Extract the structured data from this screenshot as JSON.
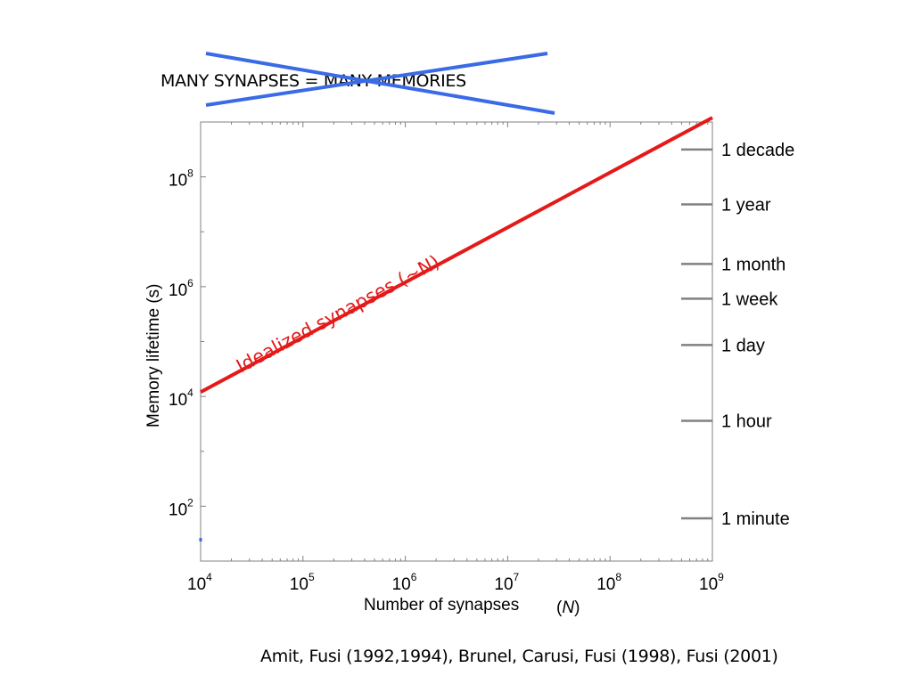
{
  "slide": {
    "title": "MANY SYNAPSES = MANY MEMORIES",
    "citation": "Amit, Fusi (1992,1994), Brunel, Carusi, Fusi (1998), Fusi (2001)"
  },
  "colors": {
    "strike": "#3a6ae6",
    "line": "#e41a1a",
    "reference_ticks": "#808080",
    "axes": "#808080"
  },
  "chart_data": {
    "type": "line",
    "xscale": "log",
    "yscale": "log",
    "xlim": [
      10000,
      1000000000
    ],
    "ylim": [
      10,
      1000000000
    ],
    "xlabel": "Number of synapses",
    "xlabel_symbol": "N",
    "ylabel": "Memory lifetime (s)",
    "x_ticks": [
      {
        "value": 10000,
        "base": "10",
        "exp": "4"
      },
      {
        "value": 100000,
        "base": "10",
        "exp": "5"
      },
      {
        "value": 1000000,
        "base": "10",
        "exp": "6"
      },
      {
        "value": 10000000,
        "base": "10",
        "exp": "7"
      },
      {
        "value": 100000000,
        "base": "10",
        "exp": "8"
      },
      {
        "value": 1000000000,
        "base": "10",
        "exp": "9"
      }
    ],
    "y_ticks": [
      {
        "value": 100,
        "base": "10",
        "exp": "2"
      },
      {
        "value": 10000,
        "base": "10",
        "exp": "4"
      },
      {
        "value": 1000000,
        "base": "10",
        "exp": "6"
      },
      {
        "value": 100000000,
        "base": "10",
        "exp": "8"
      }
    ],
    "series": [
      {
        "label": "Idealized synapses (~N)",
        "x": [
          10000,
          1000000000
        ],
        "y": [
          12000,
          1200000000
        ]
      }
    ],
    "reference_lines": [
      {
        "label": "1 decade",
        "seconds": 315360000
      },
      {
        "label": "1 year",
        "seconds": 31536000
      },
      {
        "label": "1 month",
        "seconds": 2592000
      },
      {
        "label": "1 week",
        "seconds": 604800
      },
      {
        "label": "1 day",
        "seconds": 86400
      },
      {
        "label": "1 hour",
        "seconds": 3600
      },
      {
        "label": "1 minute",
        "seconds": 60
      }
    ],
    "grid": false
  }
}
